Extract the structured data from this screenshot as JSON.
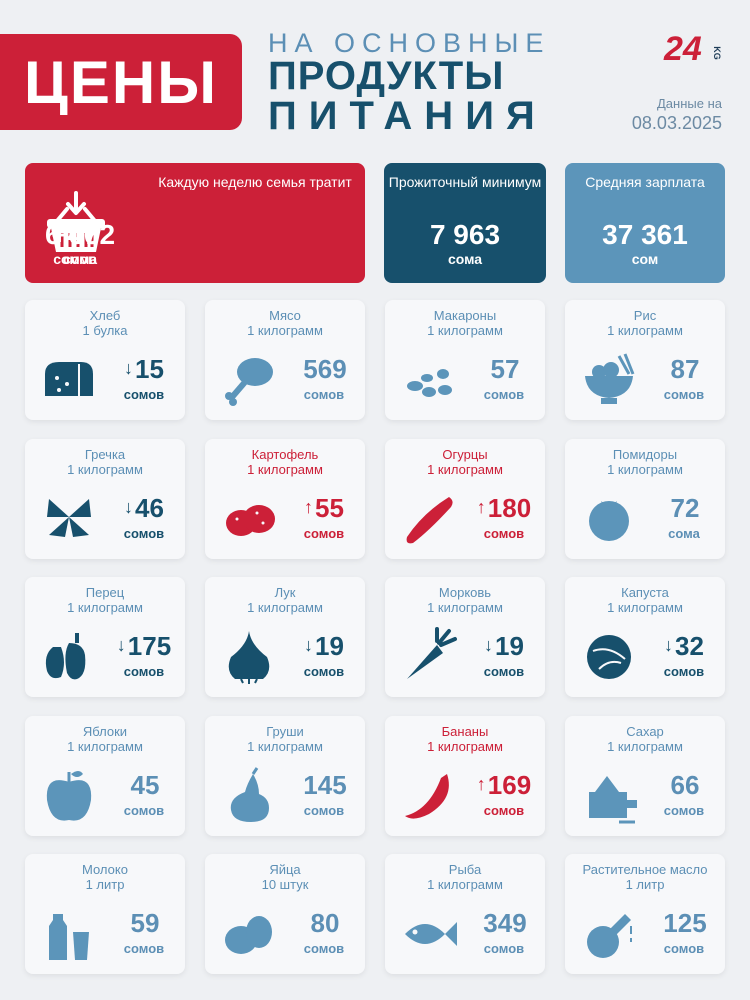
{
  "header": {
    "badge": "ЦЕНЫ",
    "line1": "НА ОСНОВНЫЕ",
    "line2": "ПРОДУКТЫ",
    "line3": "ПИТАНИЯ",
    "logo_num": "24",
    "logo_kg": "KG",
    "date_label": "Данные на",
    "date": "08.03.2025"
  },
  "stats": {
    "weekly": {
      "label": "Каждую неделю семья тратит",
      "value": "6 062",
      "unit": "сома",
      "change": "+47",
      "change_unit": "сомов"
    },
    "minimum": {
      "label": "Прожиточный минимум",
      "value": "7 963",
      "unit": "сома"
    },
    "salary": {
      "label": "Средняя зарплата",
      "value": "37 361",
      "unit": "сом"
    }
  },
  "colors": {
    "red": "#cc2038",
    "navy": "#17506c",
    "light_blue": "#5c95ba"
  },
  "products": [
    {
      "name": "Хлеб",
      "unit": "1 булка",
      "arrow": "↓",
      "price": "15",
      "currency": "сомов",
      "icon": "bread-icon",
      "tone": "d"
    },
    {
      "name": "Мясо",
      "unit": "1 килограмм",
      "arrow": "",
      "price": "569",
      "currency": "сомов",
      "icon": "meat-icon",
      "tone": "l"
    },
    {
      "name": "Макароны",
      "unit": "1 килограмм",
      "arrow": "",
      "price": "57",
      "currency": "сомов",
      "icon": "pasta-icon",
      "tone": "l"
    },
    {
      "name": "Рис",
      "unit": "1 килограмм",
      "arrow": "",
      "price": "87",
      "currency": "сомов",
      "icon": "rice-icon",
      "tone": "l"
    },
    {
      "name": "Гречка",
      "unit": "1 килограмм",
      "arrow": "↓",
      "price": "46",
      "currency": "сомов",
      "icon": "buckwheat-icon",
      "tone": "d"
    },
    {
      "name": "Картофель",
      "unit": "1 килограмм",
      "arrow": "↑",
      "price": "55",
      "currency": "сомов",
      "icon": "potato-icon",
      "tone": "r"
    },
    {
      "name": "Огурцы",
      "unit": "1 килограмм",
      "arrow": "↑",
      "price": "180",
      "currency": "сомов",
      "icon": "cucumber-icon",
      "tone": "r"
    },
    {
      "name": "Помидоры",
      "unit": "1 килограмм",
      "arrow": "",
      "price": "72",
      "currency": "сома",
      "icon": "tomato-icon",
      "tone": "l"
    },
    {
      "name": "Перец",
      "unit": "1 килограмм",
      "arrow": "↓",
      "price": "175",
      "currency": "сомов",
      "icon": "pepper-icon",
      "tone": "d"
    },
    {
      "name": "Лук",
      "unit": "1 килограмм",
      "arrow": "↓",
      "price": "19",
      "currency": "сомов",
      "icon": "onion-icon",
      "tone": "d"
    },
    {
      "name": "Морковь",
      "unit": "1 килограмм",
      "arrow": "↓",
      "price": "19",
      "currency": "сомов",
      "icon": "carrot-icon",
      "tone": "d"
    },
    {
      "name": "Капуста",
      "unit": "1 килограмм",
      "arrow": "↓",
      "price": "32",
      "currency": "сомов",
      "icon": "cabbage-icon",
      "tone": "d"
    },
    {
      "name": "Яблоки",
      "unit": "1 килограмм",
      "arrow": "",
      "price": "45",
      "currency": "сомов",
      "icon": "apple-icon",
      "tone": "l"
    },
    {
      "name": "Груши",
      "unit": "1 килограмм",
      "arrow": "",
      "price": "145",
      "currency": "сомов",
      "icon": "pear-icon",
      "tone": "l"
    },
    {
      "name": "Бананы",
      "unit": "1 килограмм",
      "arrow": "↑",
      "price": "169",
      "currency": "сомов",
      "icon": "banana-icon",
      "tone": "r"
    },
    {
      "name": "Сахар",
      "unit": "1 килограмм",
      "arrow": "",
      "price": "66",
      "currency": "сомов",
      "icon": "sugar-icon",
      "tone": "l"
    },
    {
      "name": "Молоко",
      "unit": "1 литр",
      "arrow": "",
      "price": "59",
      "currency": "сомов",
      "icon": "milk-icon",
      "tone": "l"
    },
    {
      "name": "Яйца",
      "unit": "10 штук",
      "arrow": "",
      "price": "80",
      "currency": "сомов",
      "icon": "eggs-icon",
      "tone": "l"
    },
    {
      "name": "Рыба",
      "unit": "1 килограмм",
      "arrow": "",
      "price": "349",
      "currency": "сомов",
      "icon": "fish-icon",
      "tone": "l"
    },
    {
      "name": "Растительное масло",
      "unit": "1 литр",
      "arrow": "",
      "price": "125",
      "currency": "сомов",
      "icon": "oil-icon",
      "tone": "l"
    }
  ]
}
